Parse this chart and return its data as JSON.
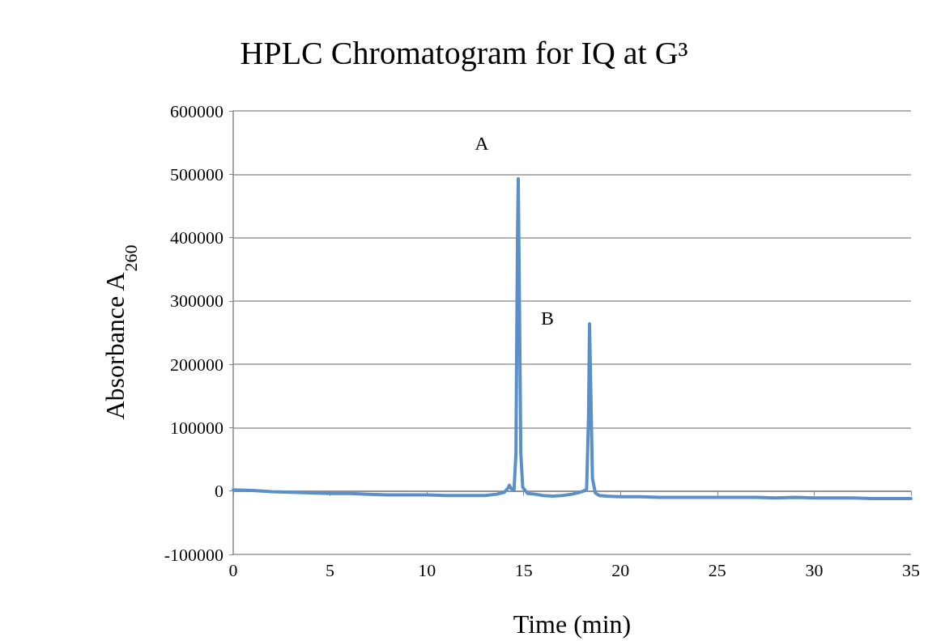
{
  "chart_data": {
    "type": "line",
    "title": "HPLC Chromatogram for IQ at G³",
    "xlabel": "Time (min)",
    "ylabel": "Absorbance A$_{260}$",
    "xlim": [
      0,
      35
    ],
    "xticks": [
      0,
      5,
      10,
      15,
      20,
      25,
      30,
      35
    ],
    "ylim": [
      -100000,
      600000
    ],
    "yticks": [
      -100000,
      0,
      100000,
      200000,
      300000,
      400000,
      500000,
      600000
    ],
    "grid": "y",
    "marker": "none",
    "line_style": "solid",
    "annotations": [
      "A",
      "B"
    ],
    "series": [
      {
        "color": "#5b8fc7",
        "x": [
          0,
          1,
          2,
          3,
          4,
          5,
          6,
          7,
          8,
          9,
          10,
          11,
          12,
          13,
          13.6,
          14,
          14.2,
          14.26,
          14.35,
          14.5,
          14.6,
          14.68,
          14.72,
          14.78,
          14.85,
          14.95,
          15.2,
          15.6,
          16,
          16.5,
          17,
          17.5,
          17.9,
          18.1,
          18.25,
          18.35,
          18.4,
          18.47,
          18.55,
          18.7,
          18.9,
          19.3,
          20,
          21,
          22,
          23,
          24,
          25,
          26,
          27,
          28,
          29,
          30,
          31,
          32,
          33,
          34,
          35
        ],
        "values": [
          2000,
          1000,
          -1000,
          -2000,
          -3000,
          -4000,
          -4000,
          -5000,
          -6000,
          -6000,
          -6000,
          -7000,
          -7000,
          -7000,
          -5000,
          -2000,
          5000,
          9000,
          4000,
          1000,
          60000,
          400000,
          493000,
          300000,
          60000,
          6000,
          -4000,
          -5000,
          -7000,
          -8000,
          -7000,
          -5000,
          -2000,
          0,
          3000,
          120000,
          264000,
          150000,
          20000,
          -3000,
          -7000,
          -8000,
          -9000,
          -9000,
          -10000,
          -10000,
          -10000,
          -10000,
          -10000,
          -10000,
          -11000,
          -10000,
          -11000,
          -11000,
          -11000,
          -12000,
          -12000,
          -12000
        ]
      }
    ]
  }
}
